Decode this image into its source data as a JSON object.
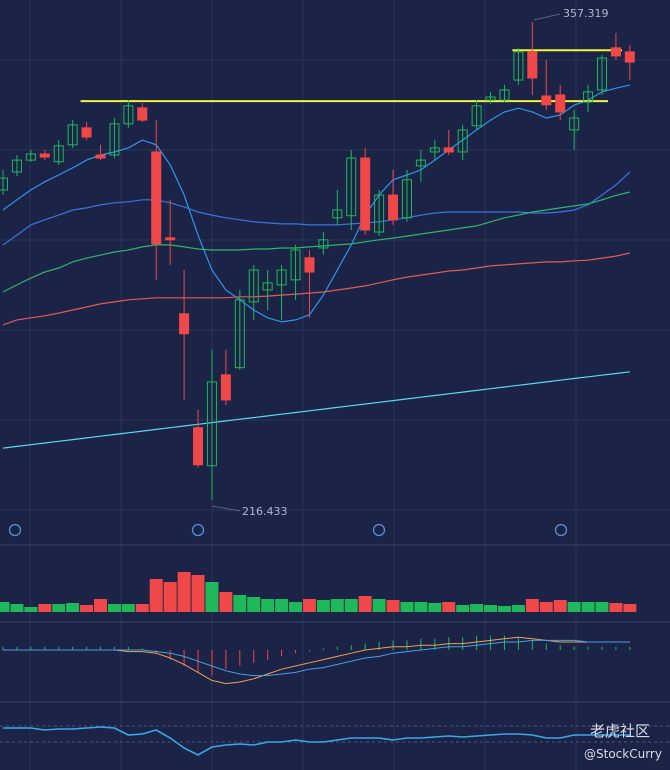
{
  "chart_data": {
    "type": "candlestick",
    "up_color": "#1fb85a",
    "down_color": "#f04848",
    "ylim": [
      204.6,
      363.8
    ],
    "candles": {
      "open": [
        307.8,
        313.1,
        316.6,
        318.4,
        316.1,
        321.1,
        326.1,
        318.1,
        318.1,
        327.3,
        332.0,
        319.0,
        293.7,
        271.3,
        237.7,
        226.5,
        253.3,
        255.4,
        274.8,
        278.3,
        279.8,
        281.3,
        287.8,
        290.7,
        299.6,
        300.2,
        317.2,
        295.4,
        306.3,
        299.6,
        314.9,
        319.0,
        320.2,
        319.0,
        326.7,
        334.3,
        334.3,
        340.2,
        348.5,
        335.5,
        335.8,
        325.5,
        333.7,
        337.3,
        349.7,
        348.5
      ],
      "close": [
        311.3,
        316.6,
        318.4,
        317.5,
        320.8,
        327.0,
        323.4,
        317.2,
        327.3,
        332.6,
        328.4,
        291.9,
        293.1,
        265.4,
        226.8,
        251.2,
        245.9,
        275.4,
        284.2,
        280.4,
        284.2,
        290.1,
        283.6,
        293.1,
        301.9,
        317.2,
        296.0,
        306.3,
        299.0,
        310.8,
        316.6,
        320.2,
        319.0,
        325.5,
        332.6,
        335.2,
        337.3,
        348.5,
        340.8,
        332.9,
        330.8,
        329.0,
        336.7,
        346.7,
        347.3,
        345.5
      ],
      "high": [
        313.7,
        318.1,
        319.6,
        319.6,
        322.5,
        328.4,
        327.8,
        321.1,
        329.0,
        334.3,
        333.4,
        328.4,
        304.9,
        284.2,
        243.0,
        260.7,
        260.7,
        278.3,
        285.7,
        284.2,
        285.7,
        291.6,
        290.1,
        295.4,
        307.8,
        319.6,
        320.2,
        307.8,
        313.7,
        313.7,
        319.6,
        322.5,
        325.5,
        327.0,
        334.3,
        336.7,
        338.8,
        349.7,
        357.319,
        346.1,
        338.8,
        331.4,
        338.8,
        347.6,
        354.1,
        350.5
      ],
      "low": [
        306.3,
        311.9,
        316.1,
        316.6,
        315.2,
        320.2,
        322.5,
        316.6,
        317.2,
        326.1,
        327.8,
        281.3,
        285.7,
        245.9,
        225.9,
        216.433,
        244.4,
        254.8,
        269.5,
        272.4,
        269.5,
        275.4,
        270.1,
        288.7,
        297.5,
        296.0,
        294.5,
        294.3,
        297.5,
        298.4,
        310.2,
        316.6,
        318.1,
        316.6,
        325.5,
        333.2,
        333.7,
        338.8,
        335.8,
        331.4,
        328.4,
        319.6,
        330.8,
        335.8,
        346.1,
        340.2
      ]
    },
    "ma": [
      {
        "color": "#2f95ee",
        "values": [
          301.9,
          304.9,
          307.8,
          310.2,
          312.2,
          314.3,
          316.6,
          318.1,
          319.0,
          320.2,
          322.5,
          321.1,
          315.2,
          306.3,
          294.5,
          284.2,
          278.3,
          275.4,
          272.4,
          270.1,
          268.9,
          269.5,
          271.0,
          276.8,
          284.2,
          291.6,
          300.4,
          306.3,
          310.8,
          312.2,
          313.7,
          316.6,
          319.6,
          322.5,
          325.5,
          328.4,
          330.8,
          331.9,
          330.8,
          329.0,
          329.9,
          332.8,
          334.3,
          336.7,
          337.8,
          338.7
        ]
      },
      {
        "color": "#3a74e0",
        "values": [
          291.6,
          294.5,
          297.5,
          299.0,
          300.4,
          301.9,
          302.5,
          303.4,
          304.0,
          304.3,
          304.9,
          304.9,
          304.0,
          302.8,
          301.3,
          300.4,
          299.6,
          299.0,
          298.4,
          298.1,
          297.8,
          297.8,
          297.5,
          297.5,
          297.5,
          297.8,
          298.1,
          298.4,
          299.0,
          299.6,
          300.4,
          301.0,
          301.3,
          301.3,
          301.3,
          301.3,
          301.3,
          301.3,
          301.0,
          301.0,
          301.3,
          301.9,
          303.4,
          306.3,
          309.3,
          313.1
        ]
      },
      {
        "color": "#2fb56a",
        "values": [
          277.7,
          279.8,
          281.8,
          283.6,
          284.8,
          286.6,
          287.7,
          288.6,
          289.5,
          290.1,
          291.0,
          291.6,
          291.6,
          291.0,
          290.4,
          290.1,
          290.1,
          290.1,
          290.4,
          290.4,
          290.7,
          290.7,
          291.0,
          291.3,
          291.6,
          291.9,
          292.5,
          293.1,
          293.6,
          294.2,
          294.8,
          295.4,
          296.0,
          296.6,
          297.2,
          298.4,
          299.6,
          300.4,
          301.3,
          301.9,
          302.5,
          303.1,
          303.7,
          304.9,
          306.2,
          307.2
        ]
      },
      {
        "color": "#e05a5a",
        "values": [
          268.0,
          269.5,
          270.1,
          270.7,
          271.5,
          272.4,
          273.3,
          274.2,
          274.8,
          275.4,
          275.7,
          276.0,
          276.0,
          276.0,
          276.0,
          276.0,
          276.0,
          276.3,
          276.3,
          276.5,
          276.8,
          277.1,
          277.4,
          277.7,
          278.3,
          278.9,
          279.5,
          280.4,
          281.3,
          282.1,
          282.7,
          283.3,
          283.9,
          284.2,
          284.8,
          285.4,
          285.7,
          286.0,
          286.3,
          286.6,
          286.6,
          286.9,
          287.1,
          287.7,
          288.3,
          289.2
        ]
      },
      {
        "color": "#5fd6f0",
        "values": [
          231.7,
          232.2,
          232.7,
          233.2,
          233.7,
          234.2,
          234.7,
          235.2,
          235.7,
          236.2,
          236.7,
          237.2,
          237.7,
          238.2,
          238.7,
          239.2,
          239.7,
          240.2,
          240.7,
          241.2,
          241.7,
          242.2,
          242.7,
          243.2,
          243.7,
          244.2,
          244.7,
          245.2,
          245.7,
          246.2,
          246.7,
          247.2,
          247.7,
          248.2,
          248.7,
          249.2,
          249.7,
          250.2,
          250.7,
          251.2,
          251.7,
          252.2,
          252.7,
          253.2,
          253.7,
          254.2
        ]
      }
    ],
    "levels": [
      {
        "value": 334.0,
        "from": 6,
        "to": 43,
        "color": "#f2f23c"
      },
      {
        "value": 349.0,
        "from": 37,
        "to": 44,
        "color": "#f2f23c"
      }
    ],
    "volume": [
      10,
      8,
      5,
      8,
      8,
      9,
      7,
      13,
      8,
      8,
      8,
      33,
      30,
      40,
      37,
      30,
      20,
      17,
      15,
      13,
      13,
      10,
      13,
      12,
      13,
      13,
      16,
      13,
      12,
      10,
      10,
      9,
      10,
      7,
      8,
      7,
      6,
      7,
      13,
      10,
      12,
      10,
      10,
      10,
      9,
      8
    ],
    "volume_ylim": [
      0,
      52
    ],
    "macd": {
      "ylim": [
        -25,
        25
      ],
      "hist": [
        2,
        2,
        2,
        2,
        2,
        2,
        2,
        2,
        2,
        2,
        1,
        -2,
        -6,
        -10,
        -14,
        -16,
        -12,
        -10,
        -8,
        -6,
        -4,
        -2,
        -1,
        1,
        2,
        3,
        4,
        5,
        6,
        6,
        7,
        7,
        8,
        8,
        9,
        9,
        9,
        8,
        6,
        4,
        3,
        2,
        2,
        2,
        2,
        2
      ],
      "dif": {
        "color": "#f0a050",
        "values": [
          0,
          0,
          0,
          0,
          0,
          0,
          0,
          0,
          0,
          -1,
          -1,
          -2,
          -5,
          -9,
          -14,
          -19,
          -21,
          -20,
          -18,
          -15,
          -12,
          -10,
          -8,
          -6,
          -4,
          -2,
          0,
          1,
          2,
          2,
          3,
          3,
          4,
          4,
          5,
          6,
          7,
          8,
          7,
          6,
          5,
          5,
          5,
          5,
          5,
          5
        ]
      },
      "dea": {
        "color": "#4aa0e0",
        "values": [
          0,
          0,
          0,
          0,
          0,
          0,
          0,
          0,
          0,
          0,
          0,
          -1,
          -2,
          -4,
          -7,
          -10,
          -13,
          -15,
          -16,
          -16,
          -15,
          -14,
          -12,
          -11,
          -9,
          -7,
          -5,
          -4,
          -2,
          -1,
          0,
          1,
          2,
          2,
          3,
          4,
          5,
          5,
          6,
          6,
          6,
          6,
          5,
          5,
          5,
          5
        ]
      }
    },
    "oscillator": {
      "ylim": [
        0,
        40
      ],
      "color": "#3aa8e8",
      "values": [
        28.4,
        28.4,
        28.4,
        26.7,
        27.6,
        27.6,
        28.4,
        29.3,
        28.4,
        22.2,
        23.1,
        26.7,
        19.6,
        10.7,
        4.4,
        11.6,
        13.3,
        14.2,
        13.3,
        16.0,
        16.0,
        17.8,
        16.0,
        16.0,
        17.8,
        19.6,
        19.6,
        19.6,
        17.8,
        19.6,
        19.6,
        20.4,
        21.3,
        20.4,
        21.3,
        22.2,
        23.1,
        23.1,
        22.2,
        19.6,
        19.6,
        22.2,
        22.2,
        22.2,
        22.2,
        22.2
      ]
    },
    "watermark": {
      "brand": "老虎社区",
      "author": "@StockCurry"
    }
  }
}
